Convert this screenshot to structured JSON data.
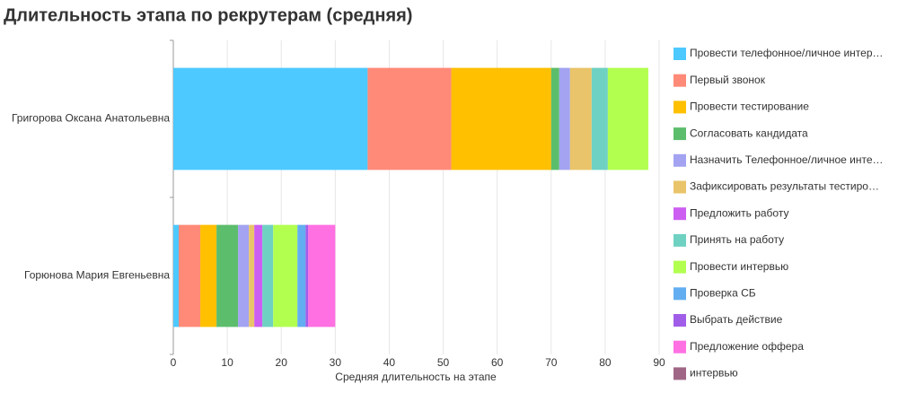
{
  "chart_data": {
    "type": "stacked-bar-horizontal",
    "title": "Длительность этапа по рекрутерам (средняя)",
    "x_label": "Средняя длительность на этапе",
    "categories": [
      "Григорова Оксана Анатольевна",
      "Горюнова Мария Евгеньевна"
    ],
    "xlim": [
      0,
      90
    ],
    "xticks": [
      0,
      10,
      20,
      30,
      40,
      50,
      60,
      70,
      80,
      90
    ],
    "grid": true,
    "series": [
      {
        "name": "Провести телефонное/личное интер…",
        "color": "#4dc9ff",
        "values": [
          36,
          1
        ]
      },
      {
        "name": "Первый звонок",
        "color": "#ff8a78",
        "values": [
          15.5,
          4
        ]
      },
      {
        "name": "Провести тестирование",
        "color": "#ffc000",
        "values": [
          18.5,
          3
        ]
      },
      {
        "name": "Согласовать кандидата",
        "color": "#5cbd6c",
        "values": [
          1.5,
          4
        ]
      },
      {
        "name": "Назначить Телефонное/личное инте…",
        "color": "#a3a3f2",
        "values": [
          2,
          2
        ]
      },
      {
        "name": "Зафиксировать результаты тестиро…",
        "color": "#e9c46a",
        "values": [
          4,
          1
        ]
      },
      {
        "name": "Предложить работу",
        "color": "#cc5ef2",
        "values": [
          0,
          1.5
        ]
      },
      {
        "name": "Принять на работу",
        "color": "#6fd1c2",
        "values": [
          3,
          2
        ]
      },
      {
        "name": "Провести интервью",
        "color": "#b2ff50",
        "values": [
          7.5,
          4.5
        ]
      },
      {
        "name": "Проверка СБ",
        "color": "#62aef0",
        "values": [
          0,
          1.5
        ]
      },
      {
        "name": "Выбрать действие",
        "color": "#a05ee8",
        "values": [
          0,
          0.5
        ]
      },
      {
        "name": "Предложение оффера",
        "color": "#ff70e2",
        "values": [
          0,
          5
        ]
      },
      {
        "name": "интервью",
        "color": "#a06686",
        "values": [
          0,
          0
        ]
      }
    ]
  }
}
